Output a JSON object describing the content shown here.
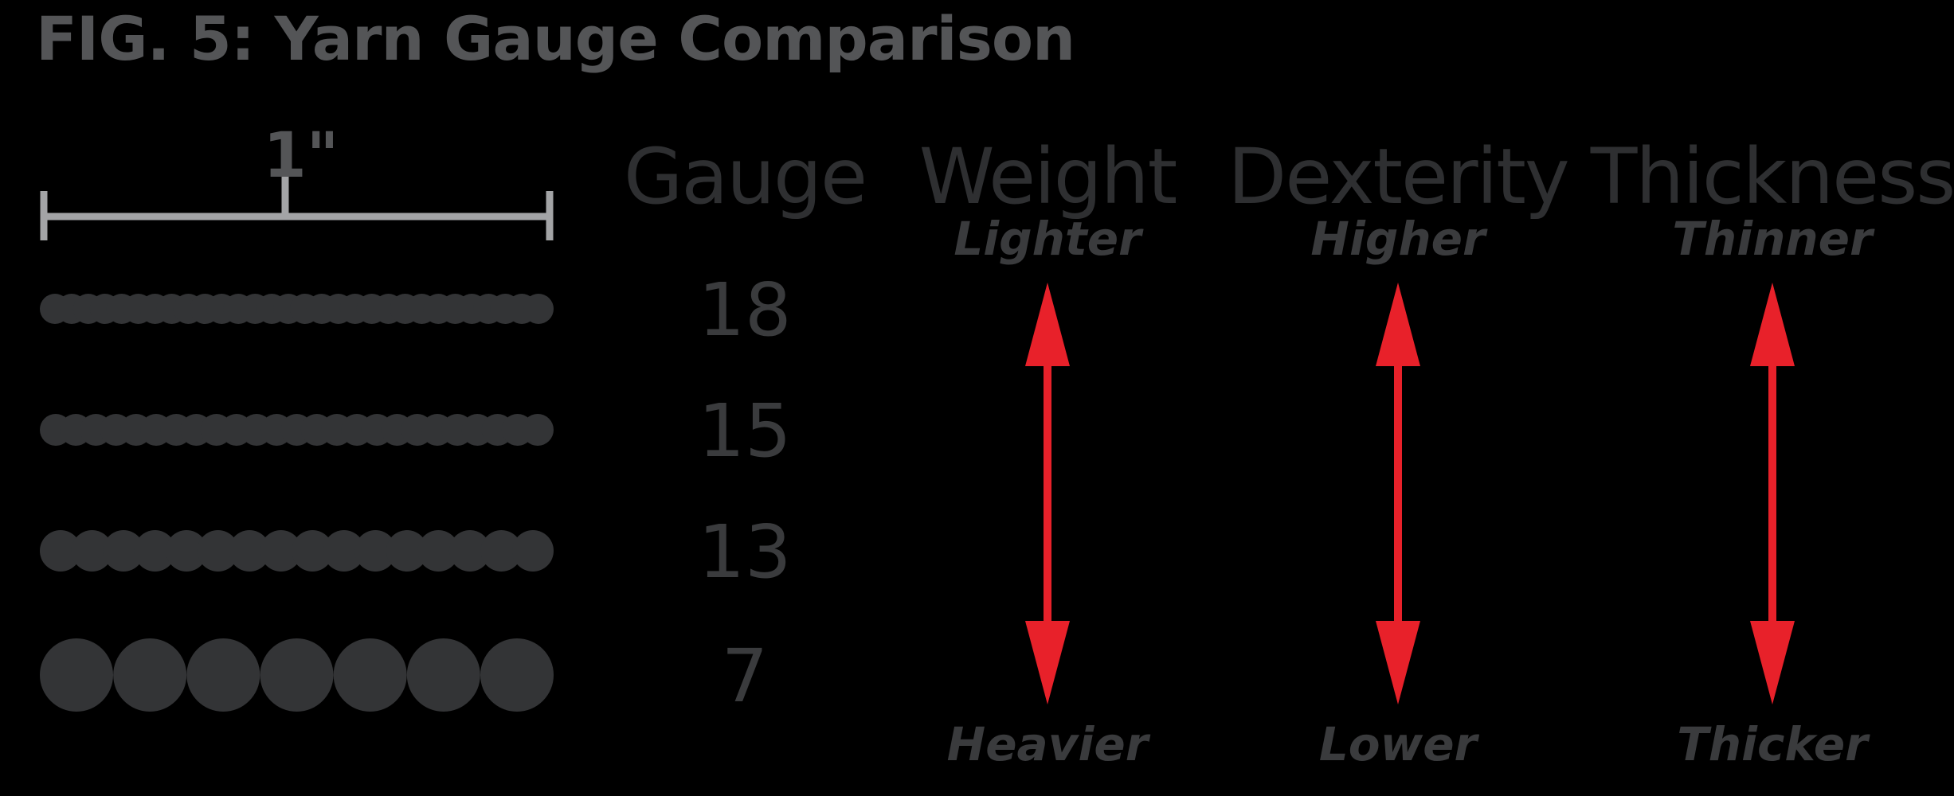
{
  "title": "FIG. 5: Yarn Gauge Comparison",
  "ruler": {
    "label": "1\""
  },
  "gauge_header": "Gauge",
  "yarns": [
    {
      "gauge": "18",
      "bead_count": 30
    },
    {
      "gauge": "15",
      "bead_count": 25
    },
    {
      "gauge": "13",
      "bead_count": 16
    },
    {
      "gauge": "7",
      "bead_count": 7
    }
  ],
  "properties": [
    {
      "name": "Weight",
      "top_label": "Lighter",
      "bottom_label": "Heavier"
    },
    {
      "name": "Dexterity",
      "top_label": "Higher",
      "bottom_label": "Lower"
    },
    {
      "name": "Thickness",
      "top_label": "Thinner",
      "bottom_label": "Thicker"
    }
  ],
  "colors": {
    "background": "#000000",
    "title": "#545557",
    "ruler": "#a3a4a6",
    "ruler_label": "#545557",
    "header": "#2e2f31",
    "text": "#3a3b3d",
    "yarn": "#333436",
    "arrow": "#e8212a"
  }
}
